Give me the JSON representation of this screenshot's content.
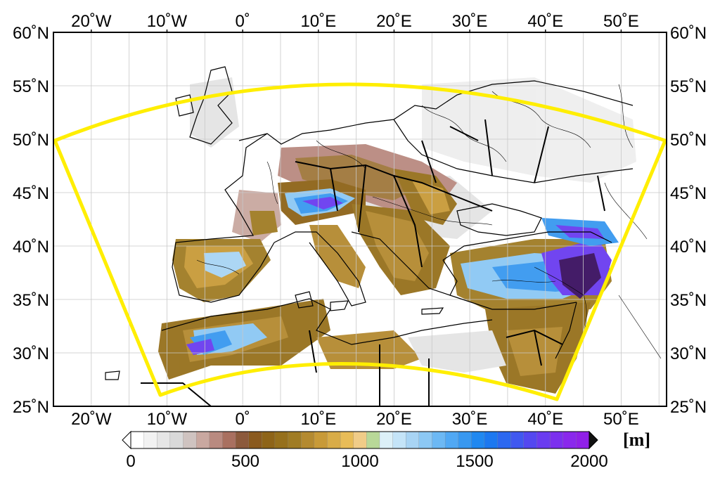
{
  "map": {
    "lon_range": [
      -25,
      56
    ],
    "lat_range": [
      25,
      60
    ],
    "top_lon_labels": [
      "20˚W",
      "10˚W",
      "0˚",
      "10˚E",
      "20˚E",
      "30˚E",
      "40˚E",
      "50˚E"
    ],
    "bottom_lon_labels": [
      "20˚W",
      "10˚W",
      "0˚",
      "10˚E",
      "20˚E",
      "30˚E",
      "40˚E",
      "50˚E"
    ],
    "left_lat_labels": [
      "60˚N",
      "55˚N",
      "50˚N",
      "45˚N",
      "40˚N",
      "35˚N",
      "30˚N",
      "25˚N"
    ],
    "right_lat_labels": [
      "60˚N",
      "55˚N",
      "50˚N",
      "45˚N",
      "40˚N",
      "35˚N",
      "30˚N",
      "25˚N"
    ],
    "grid": true,
    "domain_outline_color": "#ffee00"
  },
  "colorbar": {
    "tick_labels": [
      "0",
      "500",
      "1000",
      "1500",
      "2000"
    ],
    "unit": "[m]",
    "colors": [
      "#ffffff",
      "#f2f2f2",
      "#e6e6e6",
      "#d9d9d9",
      "#cfc3c0",
      "#c9a8a0",
      "#b98a80",
      "#a97060",
      "#8c5a3c",
      "#8a5a1e",
      "#8e6418",
      "#96701c",
      "#a07c24",
      "#b48a30",
      "#c89a38",
      "#d8ac48",
      "#e8bc58",
      "#f0cc88",
      "#b8d898",
      "#dcf0f8",
      "#c4e4f8",
      "#a8d4f4",
      "#8cc8f4",
      "#6cb8f4",
      "#50a8f4",
      "#3898f0",
      "#2088f0",
      "#1c78f0",
      "#2c68f0",
      "#4058f0",
      "#5448f0",
      "#6a3cf0",
      "#7c30ee",
      "#8a28ec",
      "#9020e8"
    ]
  }
}
